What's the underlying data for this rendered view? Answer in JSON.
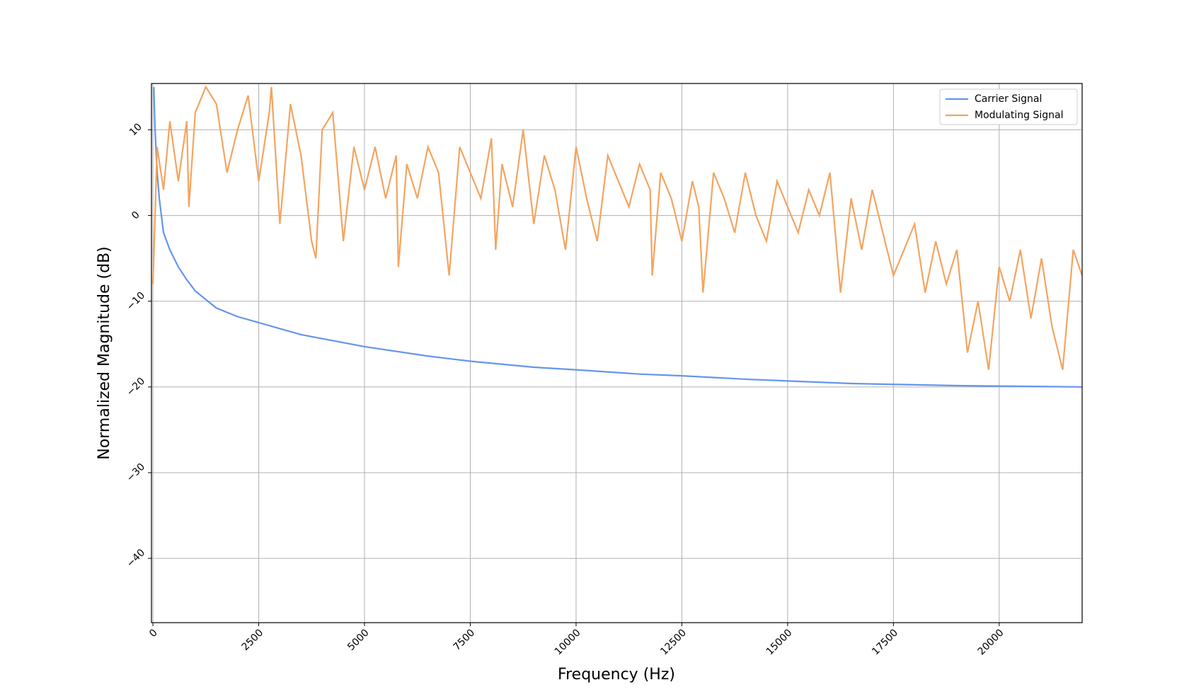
{
  "chart_data": {
    "type": "line",
    "xlabel": "Frequency (Hz)",
    "ylabel": "Normalized Magnitude (dB)",
    "xlim": [
      -35,
      21960
    ],
    "ylim": [
      -47.5,
      15.4
    ],
    "xticks": [
      0,
      2500,
      5000,
      7500,
      10000,
      12500,
      15000,
      17500,
      20000
    ],
    "yticks": [
      {
        "value": -40,
        "label": "−40"
      },
      {
        "value": -30,
        "label": "−30"
      },
      {
        "value": -20,
        "label": "−20"
      },
      {
        "value": -10,
        "label": "−10"
      },
      0,
      10
    ],
    "grid": true,
    "legend": "upper right",
    "series": [
      {
        "name": "Carrier Signal",
        "color": "#6495ed",
        "x": [
          20,
          50,
          100,
          150,
          250,
          400,
          600,
          800,
          1000,
          1500,
          2000,
          2500,
          3500,
          5000,
          6500,
          7500,
          9000,
          10000,
          11500,
          12500,
          14000,
          15000,
          16500,
          17500,
          19000,
          20000,
          21000,
          21960
        ],
        "values": [
          15,
          10,
          5,
          2,
          -2,
          -4,
          -6,
          -7.5,
          -8.8,
          -10.8,
          -11.8,
          -12.5,
          -13.9,
          -15.3,
          -16.4,
          -17,
          -17.7,
          -18,
          -18.5,
          -18.7,
          -19.1,
          -19.3,
          -19.6,
          -19.7,
          -19.85,
          -19.9,
          -19.95,
          -20
        ]
      },
      {
        "name": "Modulating Signal",
        "color": "#f4a460",
        "x": [
          0,
          100,
          250,
          400,
          600,
          800,
          850,
          1000,
          1250,
          1500,
          1750,
          2000,
          2250,
          2500,
          2750,
          2800,
          3000,
          3250,
          3500,
          3750,
          3850,
          4000,
          4250,
          4500,
          4750,
          5000,
          5250,
          5500,
          5750,
          5800,
          6000,
          6250,
          6500,
          6750,
          7000,
          7250,
          7500,
          7750,
          8000,
          8100,
          8250,
          8500,
          8750,
          9000,
          9250,
          9500,
          9750,
          10000,
          10250,
          10500,
          10750,
          11000,
          11250,
          11500,
          11750,
          11800,
          12000,
          12250,
          12500,
          12750,
          12900,
          13000,
          13250,
          13500,
          13750,
          14000,
          14250,
          14500,
          14750,
          15000,
          15250,
          15500,
          15750,
          16000,
          16250,
          16500,
          16750,
          17000,
          17250,
          17500,
          17750,
          18000,
          18250,
          18500,
          18750,
          19000,
          19250,
          19500,
          19750,
          20000,
          20250,
          20500,
          20750,
          21000,
          21250,
          21500,
          21750,
          21960
        ],
        "values": [
          -8,
          8,
          3,
          11,
          4,
          11,
          1,
          12,
          15,
          13,
          5,
          10,
          14,
          4,
          12,
          15,
          -1,
          13,
          7,
          -3,
          -5,
          10,
          12,
          -3,
          8,
          3,
          8,
          2,
          7,
          -6,
          6,
          2,
          8,
          5,
          -7,
          8,
          5,
          2,
          9,
          -4,
          6,
          1,
          10,
          -1,
          7,
          3,
          -4,
          8,
          2,
          -3,
          7,
          4,
          1,
          6,
          3,
          -7,
          5,
          2,
          -3,
          4,
          1,
          -9,
          5,
          2,
          -2,
          5,
          0,
          -3,
          4,
          1,
          -2,
          3,
          0,
          5,
          -9,
          2,
          -4,
          3,
          -2,
          -7,
          -4,
          -1,
          -9,
          -3,
          -8,
          -4,
          -16,
          -10,
          -18,
          -6,
          -10,
          -4,
          -12,
          -5,
          -13,
          -18,
          -4,
          -7
        ]
      }
    ]
  }
}
